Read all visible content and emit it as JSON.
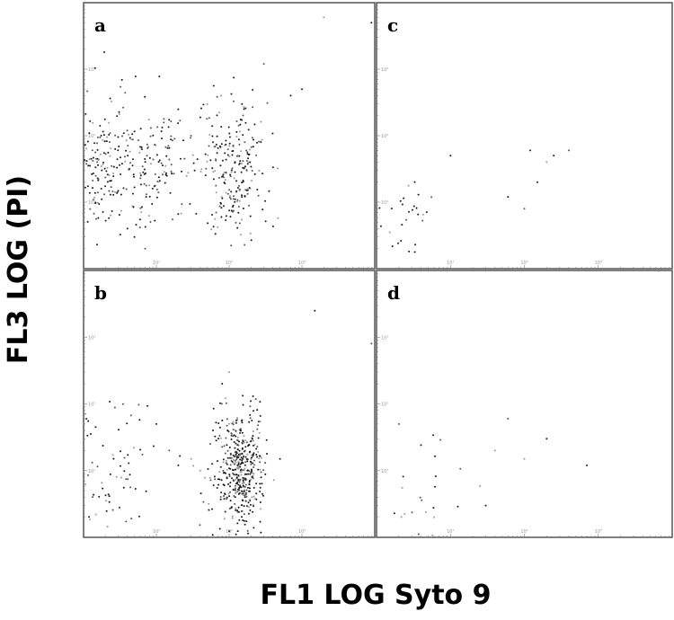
{
  "chart_data": {
    "type": "scatter",
    "xlabel": "FL1 LOG Syto 9",
    "ylabel": "FL3 LOG (PI)",
    "xscale": "log",
    "yscale": "log",
    "xlim": [
      1,
      10000
    ],
    "ylim": [
      1,
      10000
    ],
    "x_ticks": [
      "10¹",
      "10²",
      "10³"
    ],
    "y_ticks": [
      "10¹",
      "10²",
      "10³"
    ],
    "grid": false,
    "legend": "none",
    "colors": {
      "point": "#1a1a1a",
      "frame": "#555555",
      "tick_label": "#999999"
    },
    "panels": [
      {
        "label": "a",
        "clusters": [
          {
            "x_center": 2.5,
            "y_center": 35,
            "spread_x": 0.55,
            "spread_y": 0.45,
            "count": 380
          },
          {
            "x_center": 120,
            "y_center": 30,
            "spread_x": 0.22,
            "spread_y": 0.5,
            "count": 230
          }
        ],
        "outliers": [
          [
            4,
            4
          ],
          [
            5,
            3
          ],
          [
            7,
            2
          ],
          [
            20,
            250
          ],
          [
            50,
            300
          ],
          [
            300,
            1200
          ],
          [
            2000,
            6000
          ],
          [
            1000,
            500
          ],
          [
            700,
            400
          ],
          [
            9000,
            5000
          ],
          [
            150,
            300
          ],
          [
            30,
            100
          ],
          [
            60,
            80
          ]
        ]
      },
      {
        "label": "b",
        "clusters": [
          {
            "x_center": 140,
            "y_center": 10,
            "spread_x": 0.17,
            "spread_y": 0.45,
            "count": 460
          },
          {
            "x_center": 2,
            "y_center": 8,
            "spread_x": 0.3,
            "spread_y": 0.55,
            "count": 80
          }
        ],
        "outliers": [
          [
            80,
            200
          ],
          [
            100,
            300
          ],
          [
            30,
            15
          ],
          [
            20,
            12
          ],
          [
            10,
            50
          ],
          [
            60,
            40
          ],
          [
            1500,
            2500
          ],
          [
            9000,
            800
          ],
          [
            500,
            15
          ],
          [
            15,
            20
          ],
          [
            40,
            10
          ]
        ]
      },
      {
        "label": "c",
        "clusters": [
          {
            "x_center": 2.5,
            "y_center": 7,
            "spread_x": 0.22,
            "spread_y": 0.32,
            "count": 28
          }
        ],
        "outliers": [
          [
            120,
            60
          ],
          [
            200,
            40
          ],
          [
            400,
            60
          ],
          [
            150,
            20
          ],
          [
            100,
            8
          ],
          [
            10,
            50
          ],
          [
            60,
            12
          ],
          [
            250,
            50
          ]
        ]
      },
      {
        "label": "d",
        "clusters": [
          {
            "x_center": 5,
            "y_center": 5,
            "spread_x": 0.45,
            "spread_y": 0.45,
            "count": 24
          }
        ],
        "outliers": [
          [
            700,
            12
          ],
          [
            60,
            60
          ],
          [
            200,
            30
          ],
          [
            40,
            20
          ],
          [
            100,
            15
          ],
          [
            2,
            50
          ],
          [
            30,
            3
          ],
          [
            6,
            2
          ]
        ]
      }
    ]
  }
}
